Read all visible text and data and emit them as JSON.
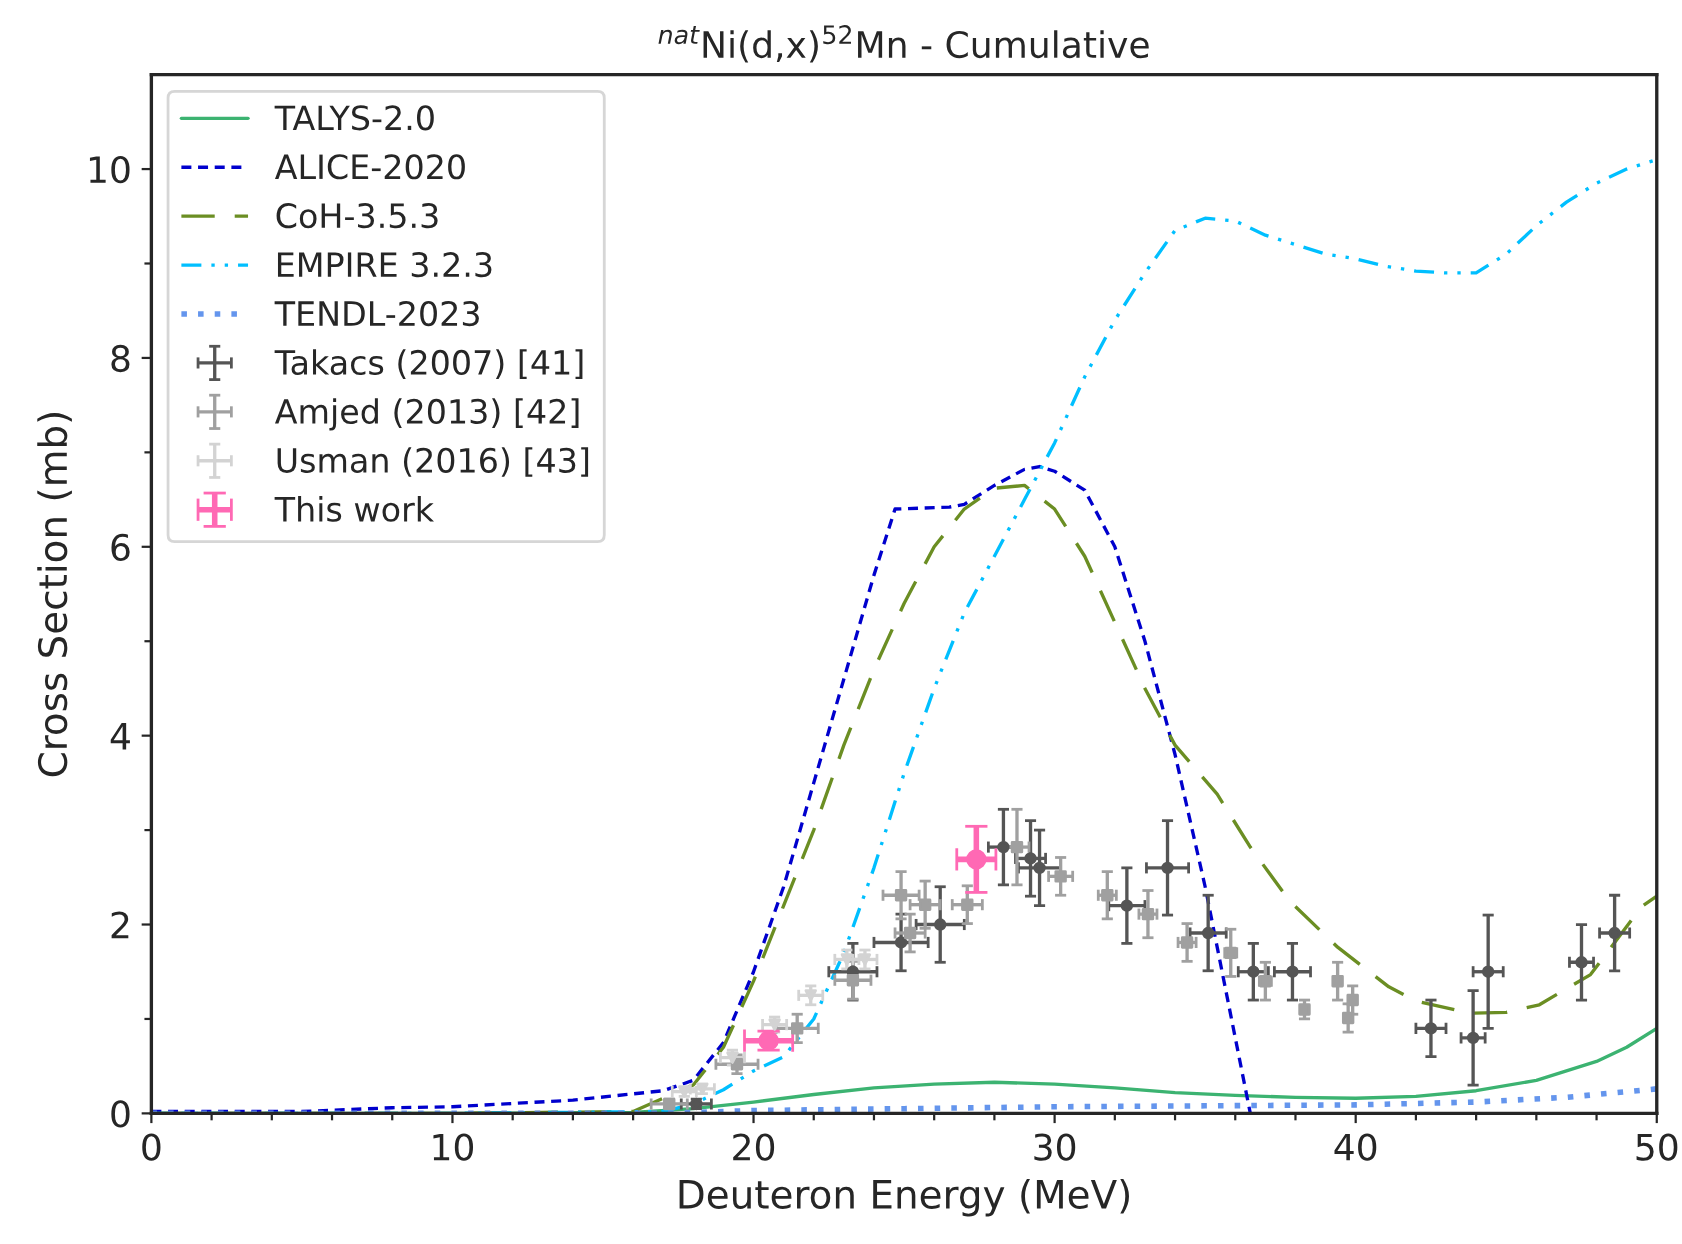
{
  "chart_data": {
    "type": "line",
    "title": "$^{nat}$Ni(d,x)$^{52}$Mn - Cumulative",
    "xlabel": "Deuteron Energy (MeV)",
    "ylabel": "Cross Section (mb)",
    "xlim": [
      0,
      50
    ],
    "ylim": [
      0,
      11
    ],
    "xticks": [
      0,
      {
        "value": 2,
        "label": null
      },
      {
        "value": 4,
        "label": null
      },
      {
        "value": 6,
        "label": null
      },
      {
        "value": 8,
        "label": null
      },
      10,
      {
        "value": 12,
        "label": null
      },
      {
        "value": 14,
        "label": null
      },
      {
        "value": 16,
        "label": null
      },
      {
        "value": 18,
        "label": null
      },
      20,
      {
        "value": 22,
        "label": null
      },
      {
        "value": 24,
        "label": null
      },
      {
        "value": 26,
        "label": null
      },
      {
        "value": 28,
        "label": null
      },
      30,
      {
        "value": 32,
        "label": null
      },
      {
        "value": 34,
        "label": null
      },
      {
        "value": 36,
        "label": null
      },
      {
        "value": 38,
        "label": null
      },
      40,
      {
        "value": 42,
        "label": null
      },
      {
        "value": 44,
        "label": null
      },
      {
        "value": 46,
        "label": null
      },
      {
        "value": 48,
        "label": null
      },
      50
    ],
    "yticks": [
      0,
      {
        "value": 1,
        "label": null
      },
      2,
      {
        "value": 3,
        "label": null
      },
      4,
      {
        "value": 5,
        "label": null
      },
      6,
      {
        "value": 7,
        "label": null
      },
      8,
      {
        "value": 9,
        "label": null
      },
      10
    ],
    "grid": false,
    "legend": "top left",
    "series": [
      {
        "name": "TALYS-2.0",
        "color": "#3cb371",
        "line_style": "solid",
        "x": [
          0,
          10,
          16,
          18,
          20,
          22,
          24,
          26,
          28,
          30,
          32,
          34,
          36,
          38,
          40,
          42,
          44,
          46,
          48,
          49,
          50
        ],
        "values": [
          0,
          0,
          0.01,
          0.05,
          0.12,
          0.2,
          0.27,
          0.31,
          0.33,
          0.31,
          0.27,
          0.22,
          0.19,
          0.17,
          0.16,
          0.18,
          0.24,
          0.35,
          0.55,
          0.7,
          0.9
        ]
      },
      {
        "name": "ALICE-2020",
        "color": "#0000cd",
        "line_style": "dashed",
        "x": [
          0,
          5,
          8,
          10,
          14,
          17,
          18,
          19,
          20,
          21,
          22,
          23,
          24,
          24.7,
          26.5,
          27,
          28,
          29,
          29.5,
          30,
          31,
          32,
          33,
          34,
          35,
          36,
          36.5
        ],
        "values": [
          0.02,
          0.02,
          0.06,
          0.07,
          0.14,
          0.24,
          0.35,
          0.75,
          1.5,
          2.4,
          3.5,
          4.6,
          5.7,
          6.4,
          6.42,
          6.45,
          6.65,
          6.82,
          6.85,
          6.8,
          6.6,
          6.0,
          5.0,
          3.8,
          2.4,
          0.8,
          0.0
        ]
      },
      {
        "name": "CoH-3.5.3",
        "color": "#6b8e23",
        "line_style": "longdashed",
        "x": [
          0,
          10,
          16,
          18,
          19,
          20,
          21,
          22,
          23,
          24,
          25,
          26,
          27,
          28,
          29,
          30,
          31,
          32,
          33,
          34,
          35.4,
          36.5,
          37.8,
          39.4,
          41.1,
          42,
          43.8,
          45,
          46.1,
          47.8,
          49.5,
          50
        ],
        "values": [
          0,
          0,
          0.02,
          0.3,
          0.7,
          1.4,
          2.2,
          3.0,
          3.9,
          4.7,
          5.4,
          6.0,
          6.4,
          6.62,
          6.65,
          6.4,
          5.9,
          5.2,
          4.5,
          3.9,
          3.38,
          2.82,
          2.25,
          1.76,
          1.34,
          1.19,
          1.06,
          1.07,
          1.15,
          1.47,
          2.19,
          2.3
        ]
      },
      {
        "name": "EMPIRE 3.2.3",
        "color": "#00bfff",
        "line_style": "dashdotdotted",
        "x": [
          0,
          10,
          17,
          18,
          19,
          20,
          21,
          22,
          23,
          24,
          25,
          26,
          27,
          28,
          29,
          30,
          31,
          32,
          33,
          34,
          35,
          36,
          37,
          38,
          39,
          40,
          41,
          42,
          43,
          44,
          45,
          46,
          47,
          48,
          49,
          50
        ],
        "values": [
          0,
          0,
          0.02,
          0.1,
          0.25,
          0.45,
          0.6,
          1.0,
          1.7,
          2.6,
          3.6,
          4.5,
          5.3,
          5.9,
          6.5,
          7.1,
          7.8,
          8.4,
          8.9,
          9.35,
          9.48,
          9.45,
          9.3,
          9.2,
          9.1,
          9.05,
          8.97,
          8.92,
          8.9,
          8.9,
          9.1,
          9.4,
          9.65,
          9.85,
          10.0,
          10.1
        ]
      },
      {
        "name": "TENDL-2023",
        "color": "#6495ed",
        "line_style": "dotted",
        "x": [
          0,
          17,
          20,
          25,
          30,
          35,
          40,
          44,
          47,
          50
        ],
        "values": [
          0,
          0,
          0.03,
          0.05,
          0.07,
          0.08,
          0.09,
          0.12,
          0.17,
          0.26
        ]
      },
      {
        "name": "Takacs (2007) [41]",
        "type": "scatter",
        "color": "#555555",
        "marker": "circle",
        "x": [
          18.1,
          23.3,
          24.9,
          26.2,
          28.3,
          29.2,
          29.5,
          32.4,
          33.75,
          35.1,
          36.6,
          37.9,
          42.5,
          43.9,
          44.4,
          47.5,
          48.6
        ],
        "values": [
          0.1,
          1.5,
          1.81,
          2.0,
          2.82,
          2.7,
          2.6,
          2.2,
          2.6,
          1.91,
          1.5,
          1.5,
          0.9,
          0.8,
          1.5,
          1.6,
          1.91
        ],
        "errors": [
          0.05,
          0.3,
          0.3,
          0.4,
          0.4,
          0.4,
          0.4,
          0.4,
          0.5,
          0.4,
          0.3,
          0.3,
          0.3,
          0.5,
          0.6,
          0.4,
          0.4
        ],
        "xerrors": [
          0.5,
          0.8,
          0.9,
          0.8,
          0.5,
          0.5,
          0.7,
          0.6,
          0.7,
          0.6,
          0.5,
          0.6,
          0.5,
          0.4,
          0.5,
          0.4,
          0.5
        ]
      },
      {
        "name": "Amjed (2013) [42]",
        "type": "scatter",
        "color": "#a0a0a0",
        "marker": "square",
        "x": [
          17.2,
          19.45,
          21.45,
          23.3,
          25.2,
          24.9,
          25.7,
          27.1,
          28.75,
          30.2,
          31.75,
          33.1,
          34.4,
          35.85,
          37.0,
          38.3,
          39.4,
          39.75,
          39.9
        ],
        "values": [
          0.1,
          0.52,
          0.9,
          1.41,
          1.91,
          2.31,
          2.21,
          2.21,
          2.82,
          2.51,
          2.31,
          2.11,
          1.81,
          1.7,
          1.4,
          1.1,
          1.4,
          1.01,
          1.2
        ],
        "errors": [
          0.05,
          0.1,
          0.15,
          0.2,
          0.2,
          0.25,
          0.25,
          0.2,
          0.4,
          0.2,
          0.25,
          0.25,
          0.2,
          0.25,
          0.2,
          0.1,
          0.2,
          0.15,
          0.15
        ],
        "xerrors": [
          0.6,
          0.7,
          0.7,
          0.6,
          0.5,
          0.6,
          0.5,
          0.5,
          0.4,
          0.4,
          0.3,
          0.3,
          0.3,
          0.2,
          0.2,
          0.1,
          0.1,
          0.1,
          0.1
        ]
      },
      {
        "name": "Usman (2016) [43]",
        "type": "scatter",
        "color": "#d3d3d3",
        "marker": "triangle",
        "x": [
          17.7,
          18.3,
          19.3,
          20.7,
          21.9,
          23.1,
          23.7
        ],
        "values": [
          0.23,
          0.26,
          0.59,
          0.94,
          1.25,
          1.63,
          1.63
        ],
        "errors": [
          0.05,
          0.05,
          0.08,
          0.08,
          0.1,
          0.1,
          0.1
        ],
        "xerrors": [
          0.4,
          0.4,
          0.4,
          0.4,
          0.4,
          0.4,
          0.4
        ]
      },
      {
        "name": "This work",
        "type": "scatter",
        "color": "#ff69b4",
        "marker": "circle",
        "x": [
          20.5,
          27.4
        ],
        "values": [
          0.77,
          2.69
        ],
        "errors": [
          0.1,
          0.35
        ],
        "xerrors": [
          0.8,
          0.65
        ]
      }
    ]
  }
}
